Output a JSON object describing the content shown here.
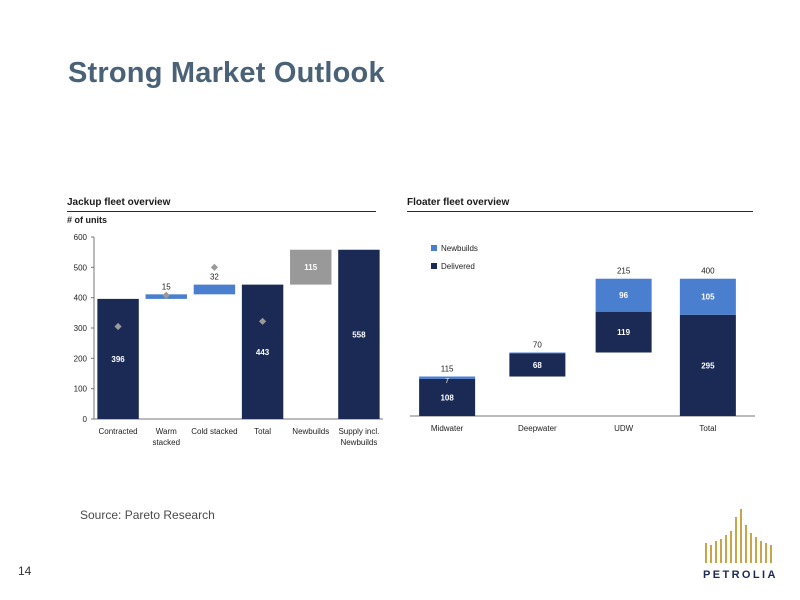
{
  "page": {
    "title": "Strong Market Outlook",
    "source": "Source: Pareto Research",
    "page_number": "14",
    "logo_text": "PETROLIA"
  },
  "colors": {
    "title": "#4a6278",
    "dark_navy": "#1b2a55",
    "light_blue": "#4a7fcf",
    "gray": "#999999",
    "diamond": "#9a9a9a"
  },
  "chart_data": [
    {
      "type": "bar",
      "subtype": "waterfall",
      "title": "Jackup fleet overview",
      "ylabel": "# of units",
      "ylim": [
        0,
        600
      ],
      "yticks": [
        0,
        100,
        200,
        300,
        400,
        500,
        600
      ],
      "categories": [
        "Contracted",
        "Warm stacked",
        "Cold stacked",
        "Total",
        "Newbuilds",
        "Supply incl. Newbuilds"
      ],
      "bars": [
        {
          "category": "Contracted",
          "base": 0,
          "value": 396,
          "label": "396",
          "color": "dark_navy"
        },
        {
          "category": "Warm stacked",
          "base": 396,
          "value": 15,
          "label": "15",
          "color": "light_blue"
        },
        {
          "category": "Cold stacked",
          "base": 411,
          "value": 32,
          "label": "32",
          "color": "light_blue"
        },
        {
          "category": "Total",
          "base": 0,
          "value": 443,
          "label": "443",
          "color": "dark_navy"
        },
        {
          "category": "Newbuilds",
          "base": 443,
          "value": 115,
          "label": "115",
          "color": "gray"
        },
        {
          "category": "Supply incl. Newbuilds",
          "base": 0,
          "value": 558,
          "label": "558",
          "color": "dark_navy"
        }
      ],
      "markers": [
        {
          "category": "Contracted",
          "value": 305
        },
        {
          "category": "Warm stacked",
          "value": 408
        },
        {
          "category": "Cold stacked",
          "value": 500
        },
        {
          "category": "Total",
          "value": 322
        }
      ]
    },
    {
      "type": "bar",
      "subtype": "waterfall-stacked",
      "title": "Floater fleet overview",
      "legend": [
        "Newbuilds",
        "Delivered"
      ],
      "legend_placement": "top-left",
      "ylim": [
        0,
        600
      ],
      "categories": [
        "Midwater",
        "Deepwater",
        "UDW",
        "Total"
      ],
      "bars": [
        {
          "category": "Midwater",
          "base": 0,
          "delivered": 108,
          "newbuilds": 7,
          "total": 115,
          "delivered_label": "108",
          "newbuilds_label": "7",
          "total_label": "115"
        },
        {
          "category": "Deepwater",
          "base": 115,
          "delivered": 68,
          "newbuilds": 2,
          "total": 70,
          "delivered_label": "68",
          "newbuilds_label": "",
          "total_label": "70"
        },
        {
          "category": "UDW",
          "base": 185,
          "delivered": 119,
          "newbuilds": 96,
          "total": 215,
          "delivered_label": "119",
          "newbuilds_label": "96",
          "total_label": "215"
        },
        {
          "category": "Total",
          "base": 0,
          "delivered": 295,
          "newbuilds": 105,
          "total": 400,
          "delivered_label": "295",
          "newbuilds_label": "105",
          "total_label": "400"
        }
      ]
    }
  ]
}
